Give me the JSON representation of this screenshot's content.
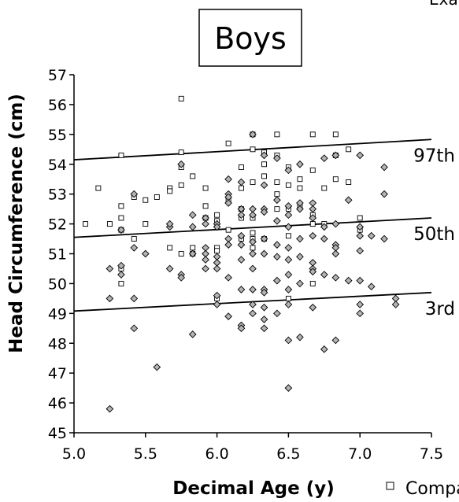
{
  "corner_text": "Exa",
  "chart_data": {
    "type": "scatter",
    "title": "Boys",
    "xlabel": "Decimal Age (y)",
    "ylabel": "Head Circumference (cm)",
    "xlim": [
      5.0,
      7.5
    ],
    "ylim": [
      45,
      57
    ],
    "x_ticks": [
      "5.0",
      "5.5",
      "6.0",
      "6.5",
      "7.0",
      "7.5"
    ],
    "y_ticks": [
      "45",
      "46",
      "47",
      "48",
      "49",
      "50",
      "51",
      "52",
      "53",
      "54",
      "55",
      "56",
      "57"
    ],
    "reference_lines": [
      {
        "name": "97th",
        "x": [
          5.0,
          7.5
        ],
        "y": [
          54.15,
          54.83
        ]
      },
      {
        "name": "50th",
        "x": [
          5.0,
          7.5
        ],
        "y": [
          51.55,
          52.2
        ]
      },
      {
        "name": "3rd",
        "x": [
          5.0,
          7.5
        ],
        "y": [
          49.08,
          49.7
        ]
      }
    ],
    "legend": {
      "placement": "bottom-right",
      "label": "Compa"
    },
    "series": [
      {
        "name": "Compa",
        "marker": "square",
        "color": "#ffffff",
        "points": [
          [
            5.08,
            52.0
          ],
          [
            5.17,
            53.2
          ],
          [
            5.25,
            52.0
          ],
          [
            5.33,
            54.3
          ],
          [
            5.33,
            52.6
          ],
          [
            5.33,
            52.2
          ],
          [
            5.33,
            51.8
          ],
          [
            5.33,
            50.5
          ],
          [
            5.33,
            50.0
          ],
          [
            5.42,
            52.9
          ],
          [
            5.42,
            51.5
          ],
          [
            5.5,
            52.8
          ],
          [
            5.5,
            52.0
          ],
          [
            5.58,
            52.9
          ],
          [
            5.67,
            53.2
          ],
          [
            5.67,
            53.1
          ],
          [
            5.67,
            51.2
          ],
          [
            5.75,
            56.2
          ],
          [
            5.75,
            54.4
          ],
          [
            5.75,
            53.9
          ],
          [
            5.75,
            53.3
          ],
          [
            5.75,
            51.0
          ],
          [
            5.83,
            53.6
          ],
          [
            5.83,
            51.2
          ],
          [
            5.83,
            51.0
          ],
          [
            5.92,
            53.2
          ],
          [
            5.92,
            52.2
          ],
          [
            5.92,
            52.6
          ],
          [
            6.0,
            52.3
          ],
          [
            6.0,
            52.1
          ],
          [
            6.0,
            51.2
          ],
          [
            6.0,
            51.1
          ],
          [
            6.0,
            49.5
          ],
          [
            6.08,
            54.7
          ],
          [
            6.08,
            52.8
          ],
          [
            6.08,
            51.8
          ],
          [
            6.17,
            53.9
          ],
          [
            6.17,
            53.2
          ],
          [
            6.17,
            52.5
          ],
          [
            6.17,
            52.2
          ],
          [
            6.17,
            51.5
          ],
          [
            6.25,
            55.0
          ],
          [
            6.25,
            54.5
          ],
          [
            6.25,
            53.4
          ],
          [
            6.25,
            52.2
          ],
          [
            6.25,
            51.7
          ],
          [
            6.25,
            51.5
          ],
          [
            6.25,
            51.2
          ],
          [
            6.33,
            54.4
          ],
          [
            6.33,
            54.0
          ],
          [
            6.33,
            53.6
          ],
          [
            6.33,
            51.5
          ],
          [
            6.42,
            55.0
          ],
          [
            6.42,
            54.3
          ],
          [
            6.42,
            53.4
          ],
          [
            6.42,
            53.0
          ],
          [
            6.42,
            52.5
          ],
          [
            6.5,
            53.9
          ],
          [
            6.5,
            53.3
          ],
          [
            6.5,
            52.5
          ],
          [
            6.5,
            51.6
          ],
          [
            6.5,
            49.5
          ],
          [
            6.58,
            53.5
          ],
          [
            6.58,
            53.2
          ],
          [
            6.58,
            52.6
          ],
          [
            6.67,
            55.0
          ],
          [
            6.67,
            53.8
          ],
          [
            6.67,
            52.3
          ],
          [
            6.67,
            52.0
          ],
          [
            6.67,
            50.0
          ],
          [
            6.75,
            53.2
          ],
          [
            6.75,
            52.0
          ],
          [
            6.83,
            55.0
          ],
          [
            6.83,
            54.3
          ],
          [
            6.83,
            53.5
          ],
          [
            6.92,
            54.5
          ],
          [
            6.92,
            53.4
          ],
          [
            7.0,
            52.2
          ],
          [
            7.0,
            51.8
          ]
        ]
      },
      {
        "name": "",
        "marker": "diamond",
        "color": "#b4b4b4",
        "points": [
          [
            5.25,
            50.5
          ],
          [
            5.25,
            49.5
          ],
          [
            5.25,
            45.8
          ],
          [
            5.33,
            50.6
          ],
          [
            5.33,
            50.3
          ],
          [
            5.33,
            51.8
          ],
          [
            5.42,
            53.0
          ],
          [
            5.42,
            51.2
          ],
          [
            5.42,
            49.5
          ],
          [
            5.42,
            48.5
          ],
          [
            5.5,
            51.0
          ],
          [
            5.58,
            47.2
          ],
          [
            5.67,
            51.9
          ],
          [
            5.67,
            52.0
          ],
          [
            5.67,
            50.5
          ],
          [
            5.75,
            54.0
          ],
          [
            5.75,
            50.3
          ],
          [
            5.75,
            50.2
          ],
          [
            5.83,
            52.3
          ],
          [
            5.83,
            51.9
          ],
          [
            5.83,
            51.0
          ],
          [
            5.83,
            48.3
          ],
          [
            5.92,
            52.2
          ],
          [
            5.92,
            52.0
          ],
          [
            5.92,
            51.2
          ],
          [
            5.92,
            51.0
          ],
          [
            5.92,
            50.8
          ],
          [
            5.92,
            50.5
          ],
          [
            6.0,
            52.0
          ],
          [
            6.0,
            51.9
          ],
          [
            6.0,
            50.9
          ],
          [
            6.0,
            50.7
          ],
          [
            6.0,
            50.5
          ],
          [
            6.0,
            49.6
          ],
          [
            6.0,
            49.3
          ],
          [
            6.08,
            53.5
          ],
          [
            6.08,
            53.0
          ],
          [
            6.08,
            52.9
          ],
          [
            6.08,
            52.7
          ],
          [
            6.08,
            51.5
          ],
          [
            6.08,
            51.3
          ],
          [
            6.08,
            50.2
          ],
          [
            6.08,
            48.9
          ],
          [
            6.17,
            53.4
          ],
          [
            6.17,
            52.5
          ],
          [
            6.17,
            52.3
          ],
          [
            6.17,
            51.6
          ],
          [
            6.17,
            51.3
          ],
          [
            6.17,
            50.8
          ],
          [
            6.17,
            49.8
          ],
          [
            6.17,
            48.6
          ],
          [
            6.17,
            48.5
          ],
          [
            6.25,
            55.0
          ],
          [
            6.25,
            52.5
          ],
          [
            6.25,
            52.3
          ],
          [
            6.25,
            51.4
          ],
          [
            6.25,
            51.0
          ],
          [
            6.25,
            50.5
          ],
          [
            6.25,
            49.8
          ],
          [
            6.25,
            49.3
          ],
          [
            6.25,
            49.0
          ],
          [
            6.33,
            54.3
          ],
          [
            6.33,
            53.3
          ],
          [
            6.33,
            52.5
          ],
          [
            6.33,
            52.4
          ],
          [
            6.33,
            51.5
          ],
          [
            6.33,
            51.0
          ],
          [
            6.33,
            49.8
          ],
          [
            6.33,
            49.7
          ],
          [
            6.33,
            49.2
          ],
          [
            6.33,
            48.8
          ],
          [
            6.33,
            48.5
          ],
          [
            6.42,
            54.2
          ],
          [
            6.42,
            52.8
          ],
          [
            6.42,
            52.1
          ],
          [
            6.42,
            51.3
          ],
          [
            6.42,
            50.9
          ],
          [
            6.42,
            50.1
          ],
          [
            6.42,
            49.0
          ],
          [
            6.5,
            53.8
          ],
          [
            6.5,
            52.6
          ],
          [
            6.5,
            52.3
          ],
          [
            6.5,
            51.9
          ],
          [
            6.5,
            51.2
          ],
          [
            6.5,
            50.8
          ],
          [
            6.5,
            50.3
          ],
          [
            6.5,
            49.8
          ],
          [
            6.5,
            49.3
          ],
          [
            6.5,
            48.1
          ],
          [
            6.5,
            46.5
          ],
          [
            6.58,
            54.0
          ],
          [
            6.58,
            52.7
          ],
          [
            6.58,
            52.5
          ],
          [
            6.58,
            51.5
          ],
          [
            6.58,
            50.9
          ],
          [
            6.58,
            50.0
          ],
          [
            6.58,
            48.2
          ],
          [
            6.67,
            52.7
          ],
          [
            6.67,
            52.5
          ],
          [
            6.67,
            52.2
          ],
          [
            6.67,
            51.6
          ],
          [
            6.67,
            50.7
          ],
          [
            6.67,
            50.5
          ],
          [
            6.67,
            50.4
          ],
          [
            6.67,
            49.2
          ],
          [
            6.75,
            54.2
          ],
          [
            6.75,
            51.9
          ],
          [
            6.75,
            51.5
          ],
          [
            6.75,
            50.3
          ],
          [
            6.75,
            47.8
          ],
          [
            6.83,
            54.3
          ],
          [
            6.83,
            52.0
          ],
          [
            6.83,
            51.3
          ],
          [
            6.83,
            51.2
          ],
          [
            6.83,
            51.0
          ],
          [
            6.83,
            50.2
          ],
          [
            6.83,
            48.1
          ],
          [
            6.92,
            52.8
          ],
          [
            6.92,
            50.1
          ],
          [
            7.0,
            54.3
          ],
          [
            7.0,
            51.9
          ],
          [
            7.0,
            51.6
          ],
          [
            7.0,
            51.1
          ],
          [
            7.0,
            50.1
          ],
          [
            7.0,
            49.3
          ],
          [
            7.0,
            49.0
          ],
          [
            7.08,
            51.6
          ],
          [
            7.08,
            49.9
          ],
          [
            7.17,
            53.9
          ],
          [
            7.17,
            53.0
          ],
          [
            7.17,
            51.5
          ],
          [
            7.25,
            49.5
          ],
          [
            7.25,
            49.3
          ]
        ]
      }
    ]
  }
}
